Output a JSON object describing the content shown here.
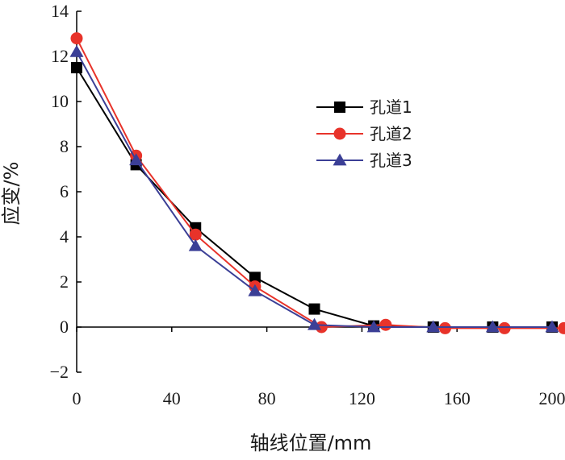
{
  "chart_data": {
    "type": "line",
    "title": "",
    "xlabel": "轴线位置/mm",
    "ylabel": "应变/%",
    "xlim": [
      0,
      200
    ],
    "ylim": [
      -2,
      14
    ],
    "xticks": [
      0,
      40,
      80,
      120,
      160,
      200
    ],
    "yticks": [
      -2,
      0,
      2,
      4,
      6,
      8,
      10,
      12,
      14
    ],
    "ytick_labels": [
      "−2",
      "0",
      "2",
      "4",
      "6",
      "8",
      "10",
      "12",
      "14"
    ],
    "grid": false,
    "legend_position": "upper-right",
    "series": [
      {
        "name": "孔道1",
        "color": "#000000",
        "marker": "square",
        "x": [
          0,
          25,
          50,
          75,
          100,
          125,
          150,
          175,
          200
        ],
        "y": [
          11.5,
          7.2,
          4.4,
          2.2,
          0.8,
          0.05,
          0.0,
          0.0,
          0.0
        ]
      },
      {
        "name": "孔道2",
        "color": "#e8332a",
        "marker": "circle",
        "x": [
          0,
          25,
          50,
          75,
          103,
          130,
          155,
          180,
          205
        ],
        "y": [
          12.8,
          7.6,
          4.1,
          1.8,
          0.0,
          0.1,
          -0.05,
          -0.05,
          -0.05
        ]
      },
      {
        "name": "孔道3",
        "color": "#3b3f96",
        "marker": "triangle",
        "x": [
          0,
          25,
          50,
          75,
          100,
          125,
          150,
          175,
          200
        ],
        "y": [
          12.2,
          7.4,
          3.6,
          1.6,
          0.1,
          0.0,
          0.0,
          0.0,
          0.0
        ]
      }
    ]
  }
}
